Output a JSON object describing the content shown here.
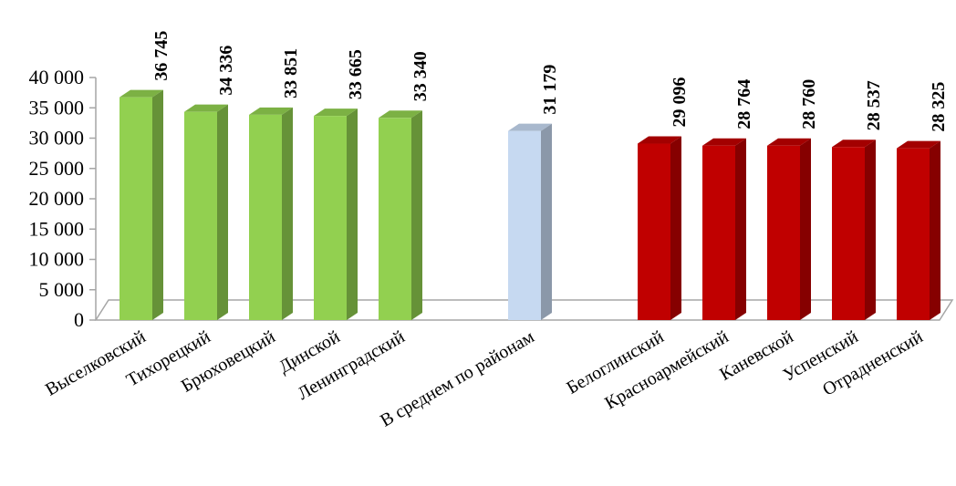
{
  "chart_data": {
    "type": "bar",
    "title": "",
    "xlabel": "",
    "ylabel": "",
    "ylim": [
      0,
      40000
    ],
    "y_ticks": [
      "0",
      "5 000",
      "10 000",
      "15 000",
      "20 000",
      "25 000",
      "30 000",
      "35 000",
      "40 000"
    ],
    "grid": false,
    "legend": "none",
    "bar_style": "3d-column",
    "categories": [
      "Выселковский",
      "Тихорецкий",
      "Брюховецкий",
      "Динской",
      "Ленинградский",
      "В среднем по районам",
      "Белоглинский",
      "Красноармейский",
      "Каневской",
      "Успенский",
      "Отрадненский"
    ],
    "values": [
      36745,
      34336,
      33851,
      33665,
      33340,
      31179,
      29096,
      28764,
      28760,
      28537,
      28325
    ],
    "value_labels": [
      "36 745",
      "34 336",
      "33 851",
      "33 665",
      "33 340",
      "31 179",
      "29 096",
      "28 764",
      "28 760",
      "28 537",
      "28 325"
    ],
    "slots": [
      0,
      1,
      2,
      3,
      4,
      6,
      8,
      9,
      10,
      11,
      12
    ],
    "bar_colors": [
      "#92d050",
      "#92d050",
      "#92d050",
      "#92d050",
      "#92d050",
      "#c6d9f1",
      "#c00000",
      "#c00000",
      "#c00000",
      "#c00000",
      "#c00000"
    ]
  }
}
